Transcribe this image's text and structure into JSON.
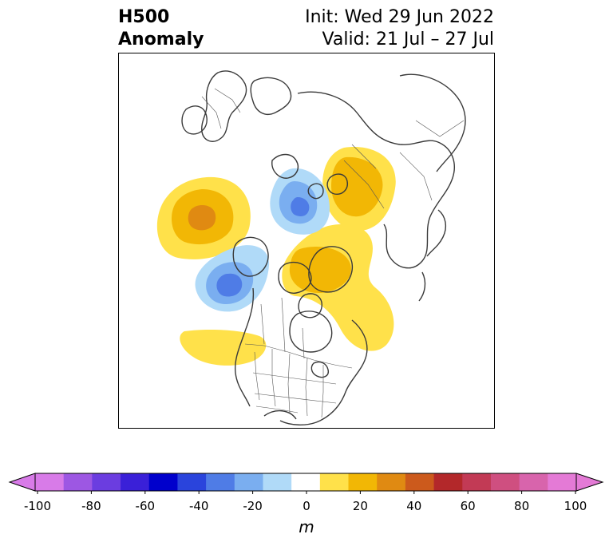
{
  "title": {
    "left_line1": "H500",
    "left_line2": "Anomaly",
    "right_line1": "Init: Wed 29 Jun 2022",
    "right_line2": "Valid: 21 Jul – 27 Jul"
  },
  "colorbar": {
    "units": "m",
    "ticks": [
      "-100",
      "-80",
      "-60",
      "-40",
      "-20",
      "0",
      "20",
      "40",
      "60",
      "80",
      "100"
    ],
    "tick_values": [
      -100,
      -80,
      -60,
      -40,
      -20,
      0,
      20,
      40,
      60,
      80,
      100
    ],
    "min": -100,
    "max": 100,
    "colors": [
      "#d87be8",
      "#9d57e3",
      "#6b3de0",
      "#3a20d8",
      "#0000cc",
      "#2a44dc",
      "#4f7ce6",
      "#7aaef0",
      "#b0daf8",
      "#ffffff",
      "#ffe14a",
      "#f2b705",
      "#e08a12",
      "#cc5a1c",
      "#b3282a",
      "#c23a55",
      "#cf4f80",
      "#d864ac",
      "#e47ad6"
    ],
    "under_color": "#d87be8",
    "over_color": "#e47ad6"
  },
  "anomaly_colors": {
    "pos_light": "#ffe14a",
    "pos_mid": "#f2b705",
    "pos_strong": "#e08a12",
    "neg_light": "#b0daf8",
    "neg_mid": "#7aaef0",
    "neg_strong": "#4f7ce6"
  }
}
